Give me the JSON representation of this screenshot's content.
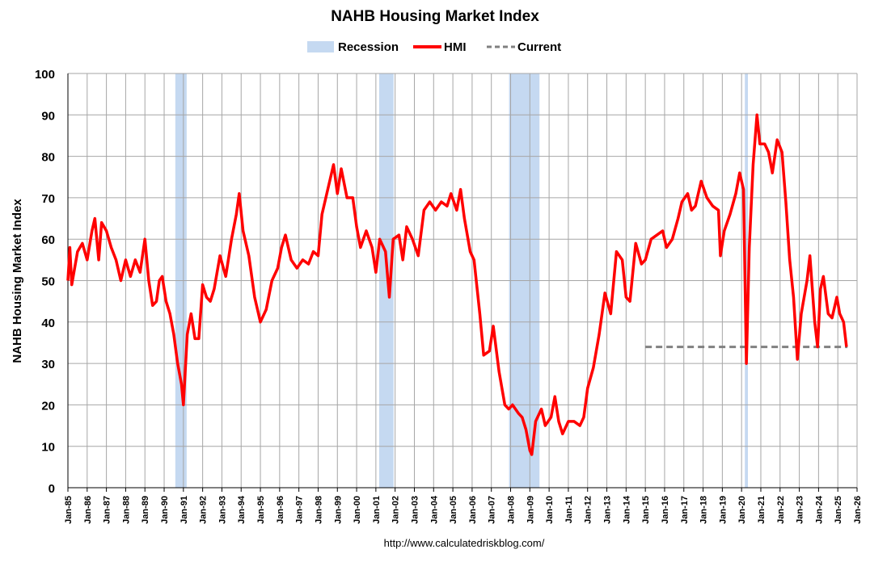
{
  "chart_data": {
    "type": "line",
    "title": "NAHB Housing Market Index",
    "ylabel": "NAHB Housing Market Index",
    "footer": "http://www.calculatedriskblog.com/",
    "grid": true,
    "legend": "top",
    "ylim": [
      0,
      100
    ],
    "yticks": [
      0,
      10,
      20,
      30,
      40,
      50,
      60,
      70,
      80,
      90,
      100
    ],
    "xlim": [
      1985,
      2026
    ],
    "xticks": [
      {
        "value": 1985,
        "label": "Jan-85"
      },
      {
        "value": 1986,
        "label": "Jan-86"
      },
      {
        "value": 1987,
        "label": "Jan-87"
      },
      {
        "value": 1988,
        "label": "Jan-88"
      },
      {
        "value": 1989,
        "label": "Jan-89"
      },
      {
        "value": 1990,
        "label": "Jan-90"
      },
      {
        "value": 1991,
        "label": "Jan-91"
      },
      {
        "value": 1992,
        "label": "Jan-92"
      },
      {
        "value": 1993,
        "label": "Jan-93"
      },
      {
        "value": 1994,
        "label": "Jan-94"
      },
      {
        "value": 1995,
        "label": "Jan-95"
      },
      {
        "value": 1996,
        "label": "Jan-96"
      },
      {
        "value": 1997,
        "label": "Jan-97"
      },
      {
        "value": 1998,
        "label": "Jan-98"
      },
      {
        "value": 1999,
        "label": "Jan-99"
      },
      {
        "value": 2000,
        "label": "Jan-00"
      },
      {
        "value": 2001,
        "label": "Jan-01"
      },
      {
        "value": 2002,
        "label": "Jan-02"
      },
      {
        "value": 2003,
        "label": "Jan-03"
      },
      {
        "value": 2004,
        "label": "Jan-04"
      },
      {
        "value": 2005,
        "label": "Jan-05"
      },
      {
        "value": 2006,
        "label": "Jan-06"
      },
      {
        "value": 2007,
        "label": "Jan-07"
      },
      {
        "value": 2008,
        "label": "Jan-08"
      },
      {
        "value": 2009,
        "label": "Jan-09"
      },
      {
        "value": 2010,
        "label": "Jan-10"
      },
      {
        "value": 2011,
        "label": "Jan-11"
      },
      {
        "value": 2012,
        "label": "Jan-12"
      },
      {
        "value": 2013,
        "label": "Jan-13"
      },
      {
        "value": 2014,
        "label": "Jan-14"
      },
      {
        "value": 2015,
        "label": "Jan-15"
      },
      {
        "value": 2016,
        "label": "Jan-16"
      },
      {
        "value": 2017,
        "label": "Jan-17"
      },
      {
        "value": 2018,
        "label": "Jan-18"
      },
      {
        "value": 2019,
        "label": "Jan-19"
      },
      {
        "value": 2020,
        "label": "Jan-20"
      },
      {
        "value": 2021,
        "label": "Jan-21"
      },
      {
        "value": 2022,
        "label": "Jan-22"
      },
      {
        "value": 2023,
        "label": "Jan-23"
      },
      {
        "value": 2024,
        "label": "Jan-24"
      },
      {
        "value": 2025,
        "label": "Jan-25"
      },
      {
        "value": 2026,
        "label": "Jan-26"
      }
    ],
    "recession_name": "Recession",
    "recession_color": "#c5d9f1",
    "recessions": [
      {
        "start": 1990.58,
        "end": 1991.17
      },
      {
        "start": 2001.17,
        "end": 2001.92
      },
      {
        "start": 2007.92,
        "end": 2009.5
      },
      {
        "start": 2020.17,
        "end": 2020.33
      }
    ],
    "current": {
      "name": "Current",
      "color": "#808080",
      "value": 34,
      "start": 2015,
      "end": 2025.5
    },
    "x": [
      1985.0,
      1985.1,
      1985.2,
      1985.5,
      1985.75,
      1986.0,
      1986.25,
      1986.4,
      1986.6,
      1986.75,
      1987.0,
      1987.25,
      1987.5,
      1987.75,
      1988.0,
      1988.25,
      1988.5,
      1988.75,
      1989.0,
      1989.2,
      1989.4,
      1989.6,
      1989.75,
      1989.9,
      1990.1,
      1990.3,
      1990.5,
      1990.7,
      1990.9,
      1991.0,
      1991.2,
      1991.4,
      1991.6,
      1991.8,
      1992.0,
      1992.2,
      1992.4,
      1992.6,
      1992.9,
      1993.2,
      1993.5,
      1993.75,
      1993.9,
      1994.1,
      1994.4,
      1994.7,
      1995.0,
      1995.3,
      1995.6,
      1995.9,
      1996.1,
      1996.3,
      1996.6,
      1996.9,
      1997.2,
      1997.5,
      1997.75,
      1998.0,
      1998.2,
      1998.5,
      1998.8,
      1999.0,
      1999.2,
      1999.5,
      1999.8,
      2000.0,
      2000.2,
      2000.5,
      2000.8,
      2001.0,
      2001.2,
      2001.5,
      2001.7,
      2001.9,
      2002.2,
      2002.4,
      2002.6,
      2002.9,
      2003.2,
      2003.5,
      2003.8,
      2004.1,
      2004.4,
      2004.7,
      2004.9,
      2005.2,
      2005.4,
      2005.6,
      2005.9,
      2006.1,
      2006.4,
      2006.6,
      2006.9,
      2007.1,
      2007.4,
      2007.7,
      2007.9,
      2008.1,
      2008.4,
      2008.6,
      2008.8,
      2009.0,
      2009.1,
      2009.3,
      2009.6,
      2009.8,
      2010.1,
      2010.3,
      2010.5,
      2010.7,
      2011.0,
      2011.3,
      2011.6,
      2011.8,
      2012.0,
      2012.3,
      2012.6,
      2012.9,
      2013.2,
      2013.5,
      2013.8,
      2014.0,
      2014.2,
      2014.5,
      2014.8,
      2015.0,
      2015.3,
      2015.6,
      2015.9,
      2016.1,
      2016.4,
      2016.7,
      2016.9,
      2017.2,
      2017.4,
      2017.6,
      2017.9,
      2018.2,
      2018.5,
      2018.8,
      2018.9,
      2019.1,
      2019.4,
      2019.7,
      2019.9,
      2020.1,
      2020.25,
      2020.4,
      2020.6,
      2020.8,
      2020.95,
      2021.2,
      2021.4,
      2021.6,
      2021.85,
      2022.1,
      2022.3,
      2022.5,
      2022.7,
      2022.9,
      2023.1,
      2023.4,
      2023.55,
      2023.8,
      2023.95,
      2024.1,
      2024.25,
      2024.5,
      2024.7,
      2024.95,
      2025.1,
      2025.3,
      2025.45
    ],
    "series": [
      {
        "name": "HMI",
        "color": "#ff0000",
        "values": [
          50,
          58,
          49,
          57,
          59,
          55,
          62,
          65,
          55,
          64,
          62,
          58,
          55,
          50,
          55,
          51,
          55,
          52,
          60,
          50,
          44,
          45,
          50,
          51,
          45,
          42,
          37,
          30,
          25,
          20,
          37,
          42,
          36,
          36,
          49,
          46,
          45,
          48,
          56,
          51,
          60,
          66,
          71,
          62,
          56,
          46,
          40,
          43,
          50,
          53,
          58,
          61,
          55,
          53,
          55,
          54,
          57,
          56,
          66,
          72,
          78,
          71,
          77,
          70,
          70,
          63,
          58,
          62,
          58,
          52,
          60,
          57,
          46,
          60,
          61,
          55,
          63,
          60,
          56,
          67,
          69,
          67,
          69,
          68,
          71,
          67,
          72,
          65,
          57,
          55,
          42,
          32,
          33,
          39,
          28,
          20,
          19,
          20,
          18,
          17,
          14,
          9,
          8,
          16,
          19,
          15,
          17,
          22,
          16,
          13,
          16,
          16,
          15,
          17,
          24,
          29,
          37,
          47,
          42,
          57,
          55,
          46,
          45,
          59,
          54,
          55,
          60,
          61,
          62,
          58,
          60,
          65,
          69,
          71,
          67,
          68,
          74,
          70,
          68,
          67,
          56,
          62,
          66,
          71,
          76,
          72,
          30,
          58,
          78,
          90,
          83,
          83,
          81,
          76,
          84,
          81,
          69,
          55,
          46,
          31,
          42,
          50,
          56,
          40,
          34,
          48,
          51,
          42,
          41,
          46,
          42,
          40,
          34
        ]
      }
    ]
  }
}
